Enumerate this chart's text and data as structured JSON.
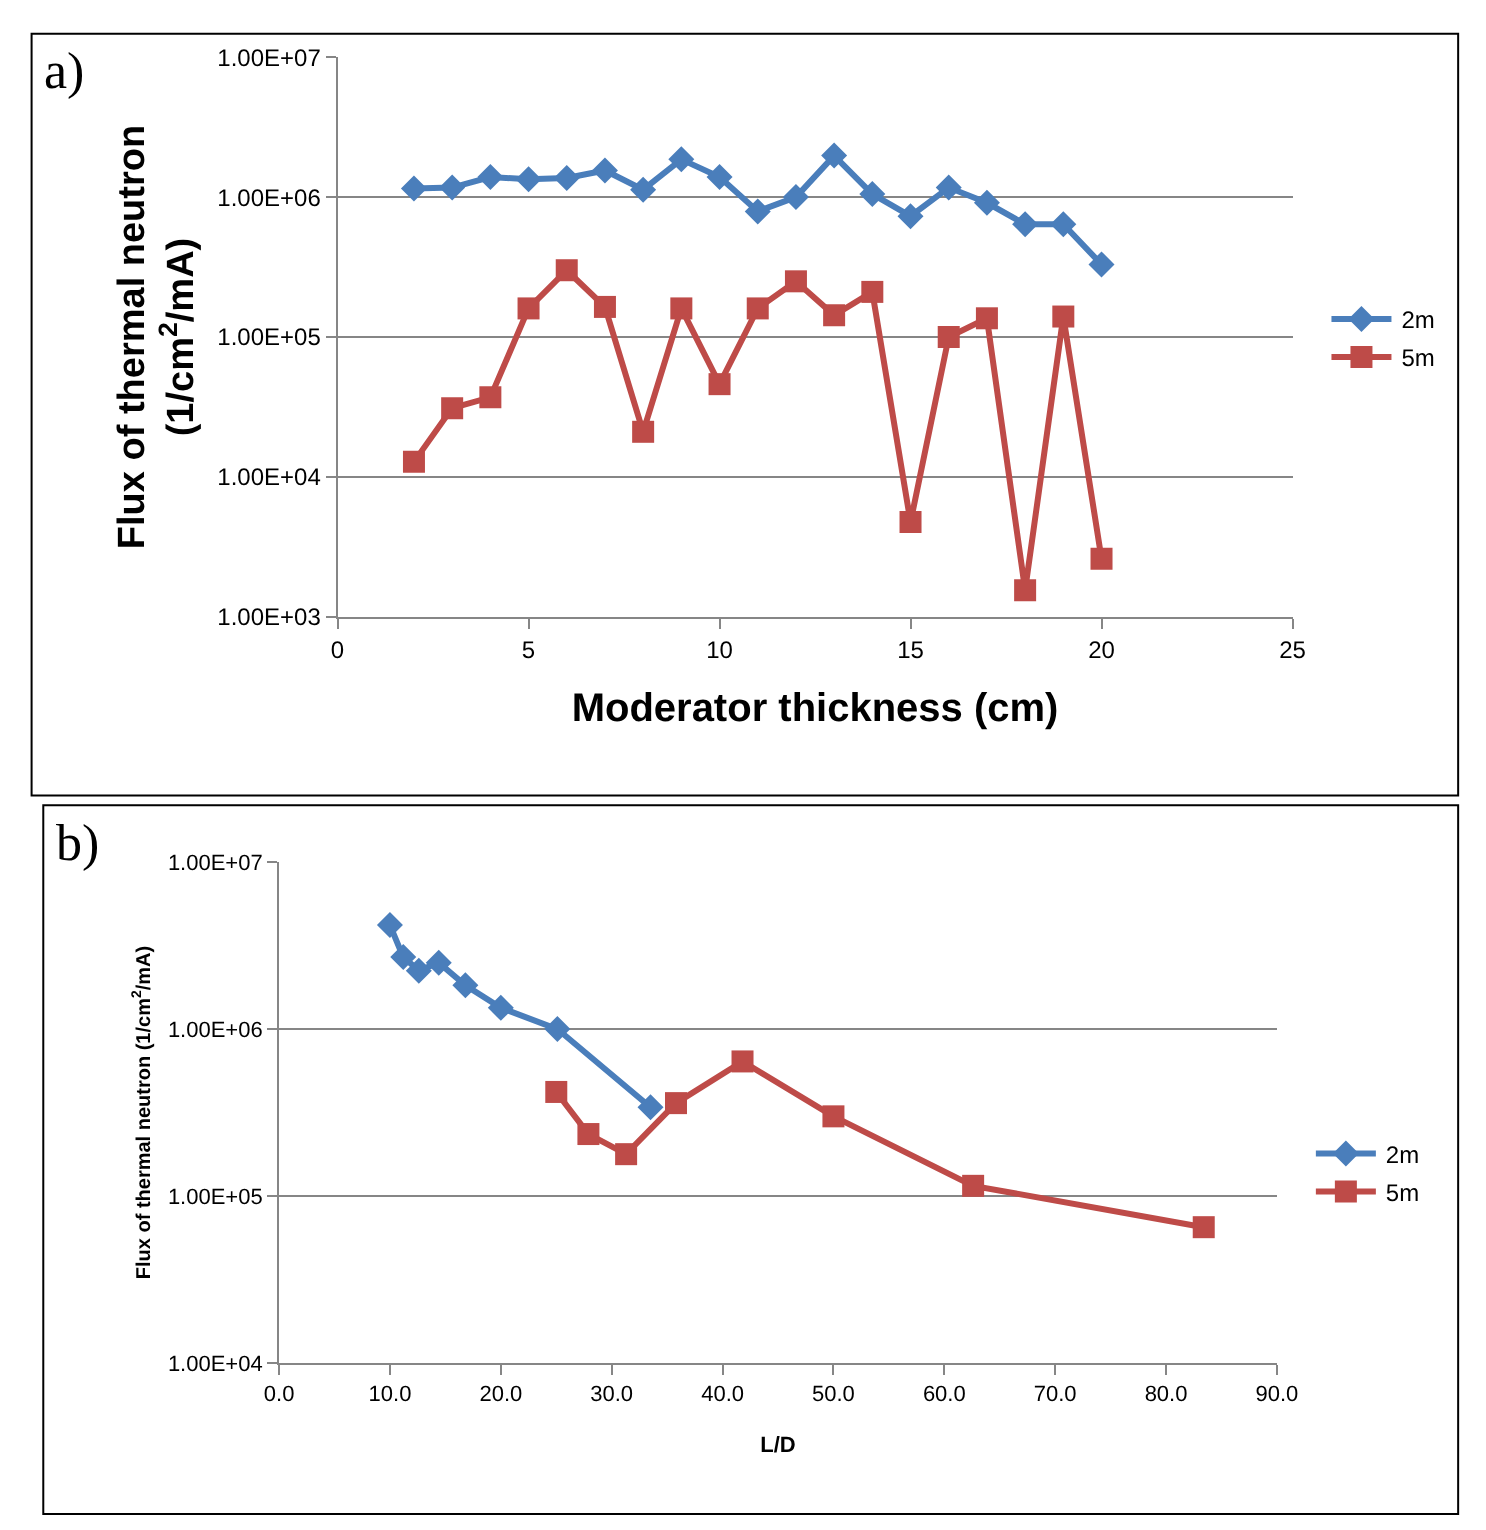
{
  "chart_data": [
    {
      "type": "line",
      "annotations": [
        "a)"
      ],
      "xlabel": "Moderator thickness (cm)",
      "ylabel": "Flux of thermal neutron\n(1/cm$^{2}$/mA)",
      "log": "y",
      "grid": "y",
      "legend": "right",
      "line_style": "solid",
      "xlim": [
        0,
        25
      ],
      "xticks": [
        0,
        5,
        10,
        15,
        20,
        25
      ],
      "ylim": [
        1000,
        10000000
      ],
      "yticks": [
        {
          "value": 1000,
          "label": "1.00E+03"
        },
        {
          "value": 10000,
          "label": "1.00E+04"
        },
        {
          "value": 100000,
          "label": "1.00E+05"
        },
        {
          "value": 1000000,
          "label": "1.00E+06"
        },
        {
          "value": 10000000,
          "label": "1.00E+07"
        }
      ],
      "series": [
        {
          "name": "2m",
          "color": "#4a7ebb",
          "marker": "diamond",
          "x": [
            2,
            3,
            4,
            5,
            6,
            7,
            8,
            9,
            10,
            11,
            12,
            13,
            14,
            15,
            16,
            17,
            18,
            19,
            20
          ],
          "values": [
            1150000,
            1170000,
            1390000,
            1340000,
            1370000,
            1550000,
            1130000,
            1860000,
            1390000,
            790000,
            1000000,
            1980000,
            1050000,
            730000,
            1170000,
            910000,
            640000,
            640000,
            330000
          ]
        },
        {
          "name": "5m",
          "color": "#be4b48",
          "marker": "square",
          "x": [
            2,
            3,
            4,
            5,
            6,
            7,
            8,
            9,
            10,
            11,
            12,
            13,
            14,
            15,
            16,
            17,
            18,
            19,
            20
          ],
          "values": [
            12800,
            31000,
            37000,
            160000,
            300000,
            164000,
            21000,
            160000,
            46000,
            160000,
            250000,
            143000,
            210000,
            4750,
            100000,
            136000,
            1550,
            140000,
            2600
          ]
        }
      ]
    },
    {
      "type": "line",
      "annotations": [
        "b)"
      ],
      "xlabel": "L/D",
      "ylabel": "Flux of thermal neutron (1/cm$^{2}$/mA)",
      "log": "y",
      "grid": "y",
      "legend": "right",
      "line_style": "solid",
      "xlim": [
        0,
        90
      ],
      "xticks": [
        {
          "value": 0,
          "label": "0.0"
        },
        {
          "value": 10,
          "label": "10.0"
        },
        {
          "value": 20,
          "label": "20.0"
        },
        {
          "value": 30,
          "label": "30.0"
        },
        {
          "value": 40,
          "label": "40.0"
        },
        {
          "value": 50,
          "label": "50.0"
        },
        {
          "value": 60,
          "label": "60.0"
        },
        {
          "value": 70,
          "label": "70.0"
        },
        {
          "value": 80,
          "label": "80.0"
        },
        {
          "value": 90,
          "label": "90.0"
        }
      ],
      "ylim": [
        10000,
        10000000
      ],
      "yticks": [
        {
          "value": 10000,
          "label": "1.00E+04"
        },
        {
          "value": 100000,
          "label": "1.00E+05"
        },
        {
          "value": 1000000,
          "label": "1.00E+06"
        },
        {
          "value": 10000000,
          "label": "1.00E+07"
        }
      ],
      "series": [
        {
          "name": "2m",
          "color": "#4a7ebb",
          "marker": "diamond",
          "x": [
            10.0,
            11.2,
            12.6,
            14.4,
            16.8,
            20.0,
            25.1,
            33.5
          ],
          "values": [
            4200000,
            2700000,
            2240000,
            2500000,
            1830000,
            1340000,
            1000000,
            340000
          ]
        },
        {
          "name": "5m",
          "color": "#be4b48",
          "marker": "square",
          "x": [
            25.0,
            27.9,
            31.3,
            35.8,
            41.8,
            50.0,
            62.6,
            83.4
          ],
          "values": [
            420000,
            235000,
            178000,
            360000,
            640000,
            300000,
            115000,
            65000
          ]
        }
      ]
    }
  ]
}
